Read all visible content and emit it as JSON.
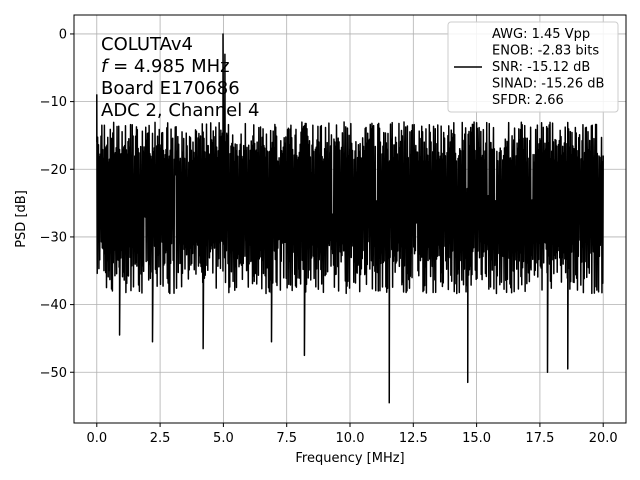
{
  "chart_data": {
    "type": "line",
    "xlabel": "Frequency [MHz]",
    "ylabel": "PSD [dB]",
    "xlim": [
      -0.9,
      20.9
    ],
    "ylim": [
      -57.5,
      2.8
    ],
    "xticks": [
      0.0,
      2.5,
      5.0,
      7.5,
      10.0,
      12.5,
      15.0,
      17.5,
      20.0
    ],
    "xtick_labels": [
      "0.0",
      "2.5",
      "5.0",
      "7.5",
      "10.0",
      "12.5",
      "15.0",
      "17.5",
      "20.0"
    ],
    "yticks": [
      0,
      -10,
      -20,
      -30,
      -40,
      -50
    ],
    "ytick_labels": [
      "0",
      "−10",
      "−20",
      "−30",
      "−40",
      "−50"
    ],
    "grid": true,
    "annotation": {
      "lines": [
        "COLUTAv4",
        "f = 4.985 MHz",
        "Board E170686",
        "ADC 2, Channel 4"
      ],
      "italic_symbol": "f",
      "placement": "top-left"
    },
    "legend": {
      "placement": "top-right",
      "lines": [
        "AWG: 1.45 Vpp",
        "ENOB: -2.83 bits",
        "SNR: -15.12 dB",
        "SINAD: -15.26 dB",
        "SFDR: 2.66"
      ]
    },
    "series": [
      {
        "color": "#000000",
        "noise_floor": {
          "x_range": [
            0.0,
            20.0
          ],
          "typical_max": -16,
          "typical_min": -36,
          "typical_center": -25
        },
        "features": [
          {
            "x": 0.0,
            "y": -9
          },
          {
            "x": 4.985,
            "y": 0.0
          },
          {
            "x": 5.06,
            "y": -3
          },
          {
            "x": 4.2,
            "y": -46.5
          },
          {
            "x": 2.2,
            "y": -45.5
          },
          {
            "x": 0.9,
            "y": -44.5
          },
          {
            "x": 11.55,
            "y": -54.5
          },
          {
            "x": 14.65,
            "y": -51.5
          },
          {
            "x": 8.2,
            "y": -47.5
          },
          {
            "x": 17.8,
            "y": -50
          },
          {
            "x": 18.6,
            "y": -49.5
          },
          {
            "x": 6.9,
            "y": -45.5
          }
        ]
      }
    ]
  }
}
